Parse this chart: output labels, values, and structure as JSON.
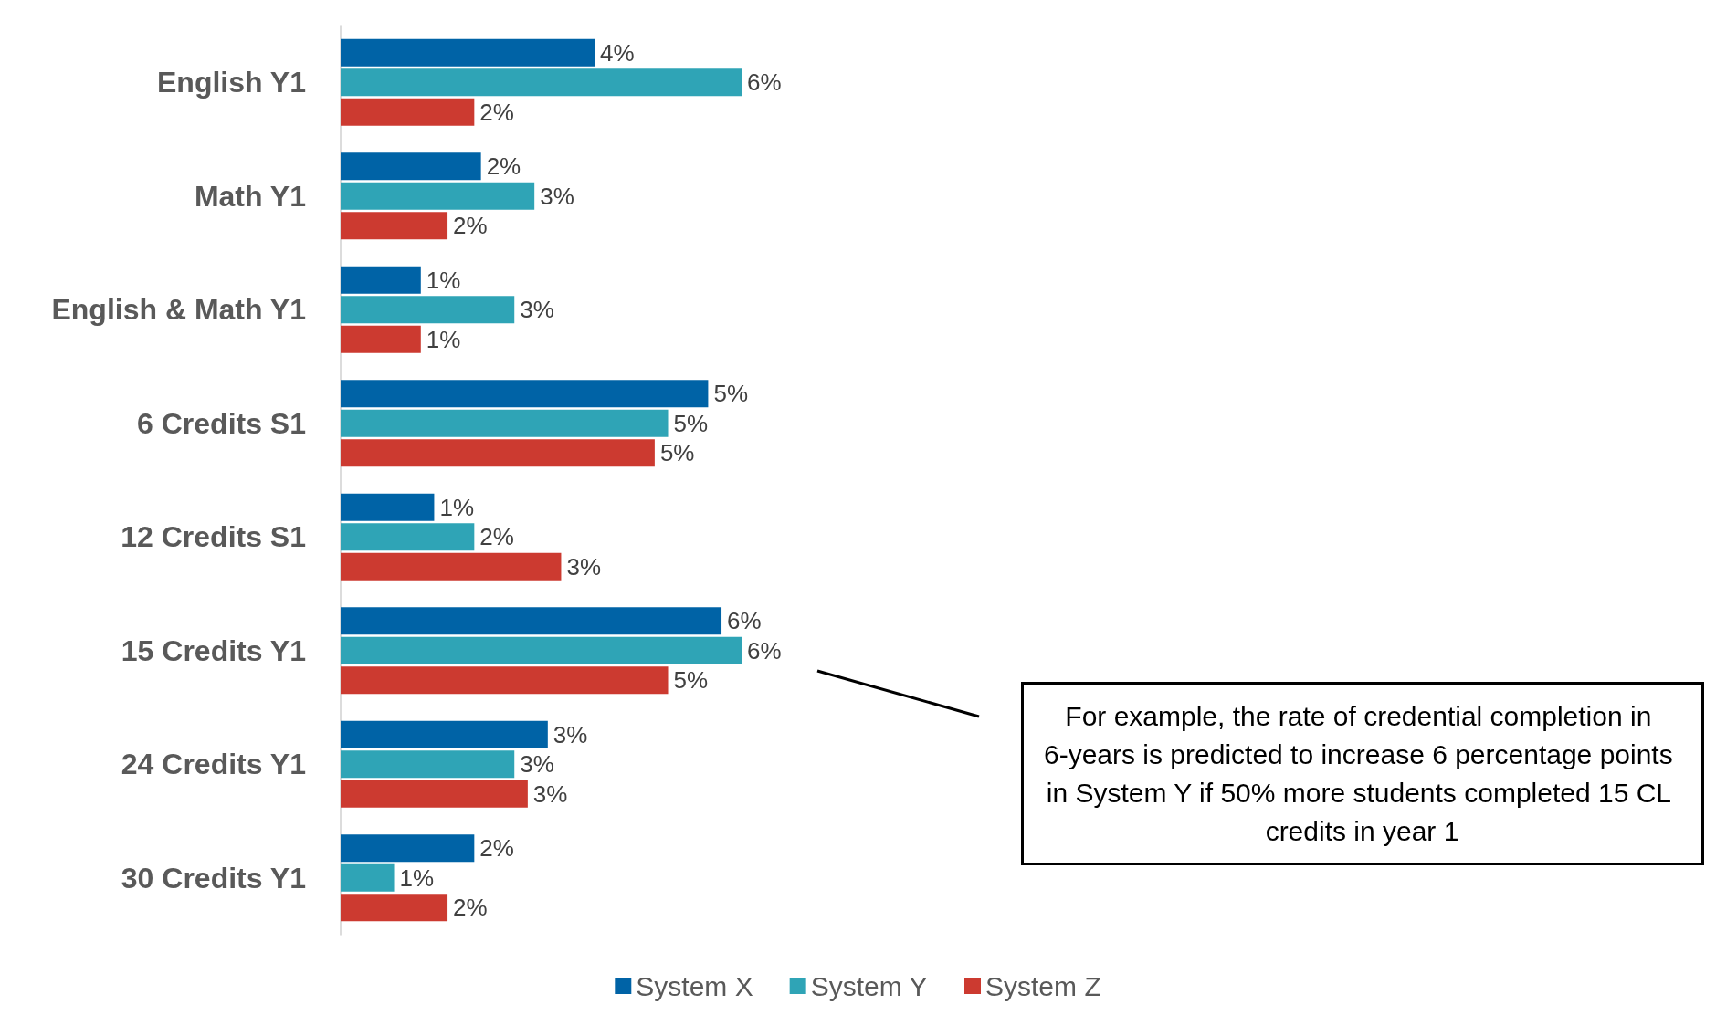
{
  "chart_data": {
    "type": "bar",
    "orientation": "horizontal",
    "categories": [
      "English Y1",
      "Math Y1",
      "English & Math Y1",
      "6 Credits S1",
      "12 Credits S1",
      "15 Credits Y1",
      "24 Credits Y1",
      "30 Credits Y1"
    ],
    "series": [
      {
        "name": "System X",
        "color": "#0063a6",
        "values": [
          3.8,
          2.1,
          1.2,
          5.5,
          1.4,
          5.7,
          3.1,
          2.0
        ],
        "value_labels": [
          "4%",
          "2%",
          "1%",
          "5%",
          "1%",
          "6%",
          "3%",
          "2%"
        ]
      },
      {
        "name": "System Y",
        "color": "#2fa4b6",
        "values": [
          6.0,
          2.9,
          2.6,
          4.9,
          2.0,
          6.0,
          2.6,
          0.8
        ],
        "value_labels": [
          "6%",
          "3%",
          "3%",
          "5%",
          "2%",
          "6%",
          "3%",
          "1%"
        ]
      },
      {
        "name": "System Z",
        "color": "#cc3a30",
        "values": [
          2.0,
          1.6,
          1.2,
          4.7,
          3.3,
          4.9,
          2.8,
          1.6
        ],
        "value_labels": [
          "2%",
          "2%",
          "1%",
          "5%",
          "3%",
          "5%",
          "3%",
          "2%"
        ]
      }
    ],
    "legend": "bottom",
    "annotations": [
      "For example, the rate of credential completion in 6-years is predicted to increase 6 percentage points in System Y if 50% more students completed 15 CL credits in year 1"
    ]
  }
}
